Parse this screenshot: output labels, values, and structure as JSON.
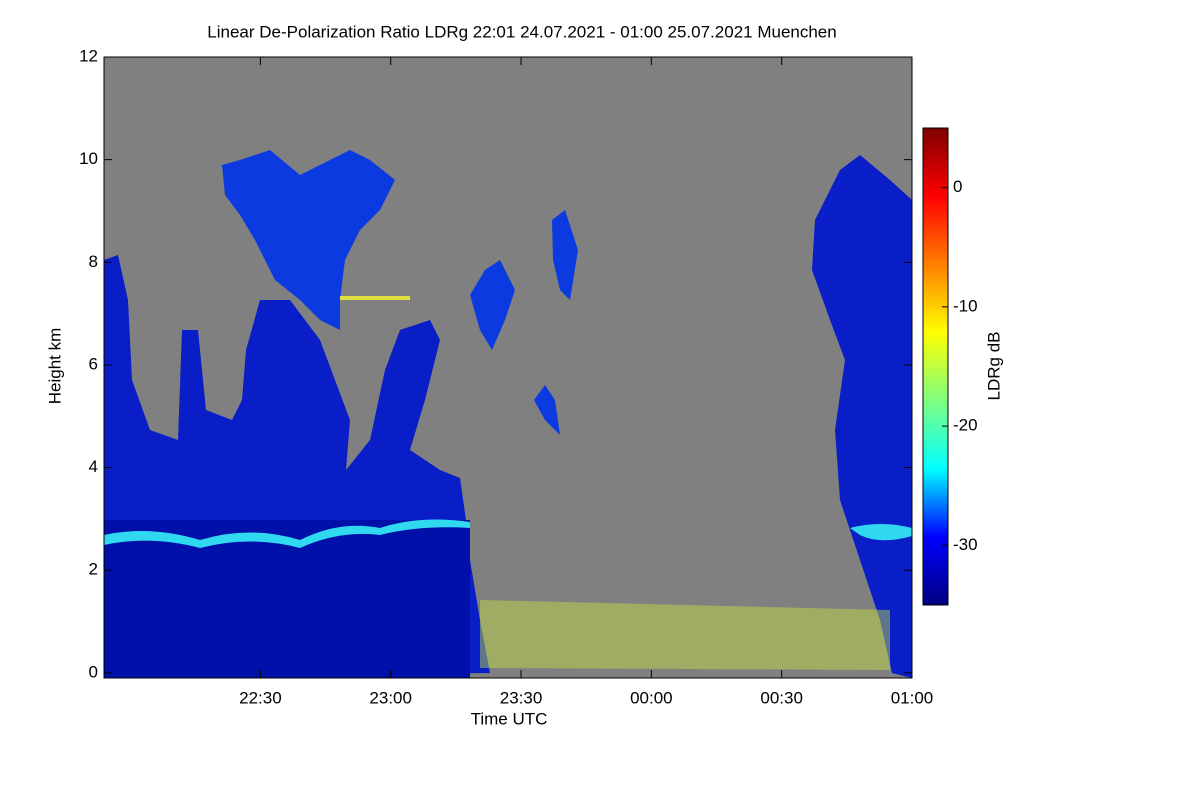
{
  "chart_data": {
    "type": "heatmap",
    "title": "Linear De-Polarization Ratio LDRg   22:01 24.07.2021 - 01:00 25.07.2021 Muenchen",
    "x_label": "Time UTC",
    "y_label": "Height km",
    "xlim": [
      "21:54",
      "01:00"
    ],
    "xticks": [
      "22:30",
      "23:00",
      "23:30",
      "00:00",
      "00:30",
      "01:00"
    ],
    "ylim": [
      -0.1,
      12
    ],
    "yticks": [
      0,
      2,
      4,
      6,
      8,
      10,
      12
    ],
    "colorbar_label": "LDRg dB",
    "clim": [
      -35,
      5
    ],
    "cticks": [
      0,
      -10,
      -20,
      -30
    ],
    "colormap": [
      "#00007f",
      "#0000ff",
      "#00ffff",
      "#7fff7f",
      "#ffff00",
      "#ff7f00",
      "#ff0000",
      "#7f0000"
    ],
    "background": "#808080"
  }
}
